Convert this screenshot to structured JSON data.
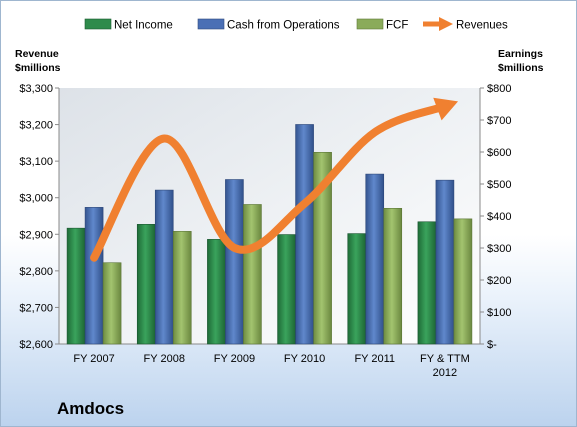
{
  "chart_data": {
    "type": "bar",
    "title": "Amdocs",
    "categories": [
      "FY 2007",
      "FY 2008",
      "FY 2009",
      "FY 2010",
      "FY 2011",
      "FY & TTM 2012"
    ],
    "category_lines": [
      [
        "FY 2007"
      ],
      [
        "FY 2008"
      ],
      [
        "FY 2009"
      ],
      [
        "FY 2010"
      ],
      [
        "FY 2011"
      ],
      [
        "FY & TTM",
        "2012"
      ]
    ],
    "y_left": {
      "label_lines": [
        "Revenue",
        "$millions"
      ],
      "ticks": [
        "$2,600",
        "$2,700",
        "$2,800",
        "$2,900",
        "$3,000",
        "$3,100",
        "$3,200",
        "$3,300"
      ],
      "ylim": [
        2600,
        3300
      ]
    },
    "y_right": {
      "label_lines": [
        "Earnings",
        "$millions"
      ],
      "ticks": [
        "$-",
        "$100",
        "$200",
        "$300",
        "$400",
        "$500",
        "$600",
        "$700",
        "$800"
      ],
      "ylim": [
        0,
        800
      ]
    },
    "series": [
      {
        "name": "Net Income",
        "axis": "right",
        "kind": "bar",
        "color": "#2e8b4b",
        "values": [
          362,
          374,
          327,
          342,
          345,
          382
        ]
      },
      {
        "name": "Cash from Operations",
        "axis": "right",
        "kind": "bar",
        "color": "#4a6fb5",
        "values": [
          427,
          481,
          514,
          686,
          531,
          512
        ]
      },
      {
        "name": "FCF",
        "axis": "right",
        "kind": "bar",
        "color": "#8aab5a",
        "values": [
          254,
          352,
          436,
          599,
          424,
          391
        ]
      },
      {
        "name": "Revenues",
        "axis": "left",
        "kind": "line-arrow",
        "color": "#f08030",
        "values": [
          2836,
          3162,
          2863,
          2984,
          3179,
          3250
        ]
      }
    ],
    "legend_position": "top",
    "grid": false
  }
}
